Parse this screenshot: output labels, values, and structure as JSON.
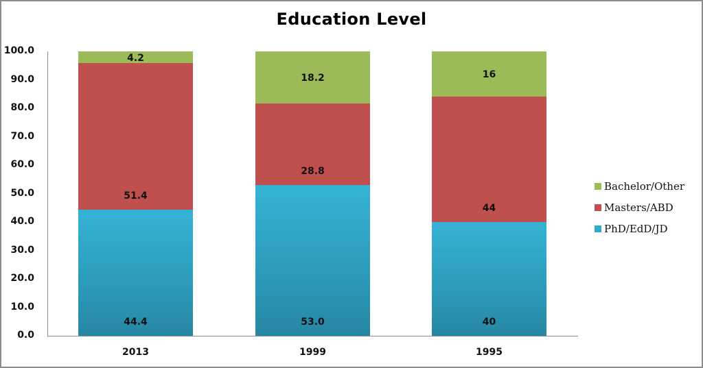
{
  "chart_data": {
    "type": "bar",
    "stacked": true,
    "title": "Education Level",
    "xlabel": "",
    "ylabel": "",
    "ylim": [
      0,
      100
    ],
    "yticks": [
      "0.0",
      "10.0",
      "20.0",
      "30.0",
      "40.0",
      "50.0",
      "60.0",
      "70.0",
      "80.0",
      "90.0",
      "100.0"
    ],
    "categories": [
      "2013",
      "1999",
      "1995"
    ],
    "series": [
      {
        "name": "PhD/EdD/JD",
        "color": "#31a9cb",
        "values": [
          44.4,
          53.0,
          40
        ],
        "labels": [
          "44.4",
          "53.0",
          "40"
        ]
      },
      {
        "name": "Masters/ABD",
        "color": "#c0504d",
        "values": [
          51.4,
          28.8,
          44
        ],
        "labels": [
          "51.4",
          "28.8",
          "44"
        ]
      },
      {
        "name": "Bachelor/Other",
        "color": "#9bbb59",
        "values": [
          4.2,
          18.2,
          16
        ],
        "labels": [
          "4.2",
          "18.2",
          "16"
        ]
      }
    ],
    "legend": {
      "position": "right",
      "order": [
        "Bachelor/Other",
        "Masters/ABD",
        "PhD/EdD/JD"
      ]
    },
    "grid": false
  }
}
